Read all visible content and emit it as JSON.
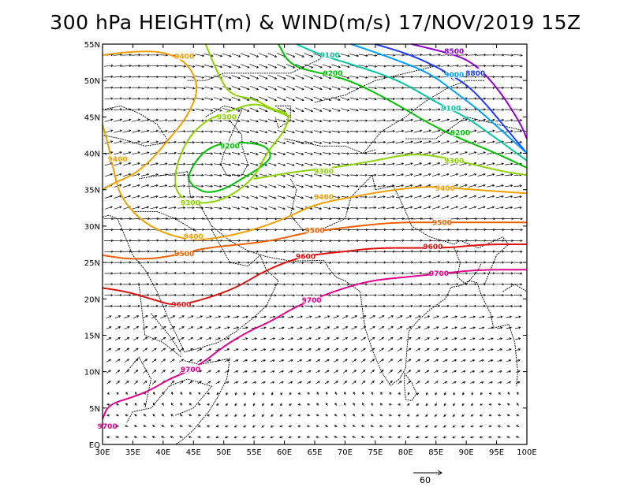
{
  "title": "300 hPa HEIGHT(m) & WIND(m/s) 17/NOV/2019 15Z",
  "map": {
    "lon_range": [
      30,
      100
    ],
    "lat_range": [
      0,
      55
    ],
    "x_ticks": [
      "30E",
      "35E",
      "40E",
      "45E",
      "50E",
      "55E",
      "60E",
      "65E",
      "70E",
      "75E",
      "80E",
      "85E",
      "90E",
      "95E",
      "100E"
    ],
    "y_ticks": [
      "EQ",
      "5N",
      "10N",
      "15N",
      "20N",
      "25N",
      "30N",
      "35N",
      "40N",
      "45N",
      "50N",
      "55N"
    ],
    "reference_vector_label": "60"
  },
  "contours": [
    {
      "label": "8500",
      "color": "#8f00d0",
      "label_lat": 54.0,
      "label_lon": 88.0,
      "path": [
        [
          81,
          55
        ],
        [
          86,
          54
        ],
        [
          90,
          53
        ],
        [
          93,
          51
        ],
        [
          96,
          48
        ],
        [
          99,
          44
        ],
        [
          100,
          42
        ]
      ]
    },
    {
      "label": "8800",
      "color": "#1e3cff",
      "label_lat": 51.5,
      "label_lon": 91.5,
      "path": [
        [
          75,
          55
        ],
        [
          81,
          53.5
        ],
        [
          86,
          51.5
        ],
        [
          90,
          49.5
        ],
        [
          93,
          47
        ],
        [
          96,
          44
        ],
        [
          100,
          40
        ]
      ]
    },
    {
      "label": "9000",
      "color": "#00a0ff",
      "label_lat": 51.5,
      "label_lon": 87.5,
      "path": [
        [
          71,
          55
        ],
        [
          78,
          53
        ],
        [
          84,
          51
        ],
        [
          88,
          48.5
        ],
        [
          92,
          46
        ],
        [
          96,
          43
        ],
        [
          100,
          40
        ]
      ]
    },
    {
      "label": "9100",
      "color": "#00c8a0",
      "label_lat": 53.5,
      "label_lon": 67.5,
      "path": [
        [
          62,
          55
        ],
        [
          66,
          53.5
        ],
        [
          72,
          52
        ],
        [
          79,
          50
        ],
        [
          85,
          47
        ],
        [
          90,
          45
        ],
        [
          95,
          42
        ],
        [
          100,
          39
        ]
      ]
    },
    {
      "label": "9200",
      "color": "#00c000",
      "label_lat": 52.5,
      "label_lon": 68.0,
      "path": [
        [
          59,
          55
        ],
        [
          61,
          52
        ],
        [
          66,
          51
        ],
        [
          71,
          50
        ],
        [
          78,
          47
        ],
        [
          84,
          44
        ],
        [
          89,
          42
        ],
        [
          95,
          40
        ],
        [
          100,
          38
        ]
      ]
    },
    {
      "label": "9200",
      "color": "#00c000",
      "label_lat": 40.5,
      "label_lon": 51.0,
      "path": [
        [
          45,
          35.5
        ],
        [
          47,
          34.5
        ],
        [
          50,
          35
        ],
        [
          53,
          36.5
        ],
        [
          56,
          38
        ],
        [
          58,
          39.5
        ],
        [
          57,
          41
        ],
        [
          54,
          41.5
        ],
        [
          50,
          41.5
        ],
        [
          47,
          40.5
        ],
        [
          45,
          38.5
        ],
        [
          44,
          36.5
        ],
        [
          45,
          35.5
        ]
      ]
    },
    {
      "label": "9300",
      "color": "#8cd200",
      "label_lat": 44.5,
      "label_lon": 50.5,
      "path": [
        [
          47,
          55
        ],
        [
          49,
          51
        ],
        [
          51,
          48
        ],
        [
          55,
          47.5
        ],
        [
          58,
          46
        ],
        [
          61,
          45.5
        ],
        [
          60,
          43
        ],
        [
          57,
          40
        ],
        [
          55,
          36.5
        ],
        [
          50,
          33.5
        ],
        [
          45,
          33
        ],
        [
          42,
          34.5
        ],
        [
          42,
          38
        ],
        [
          44,
          42
        ],
        [
          47,
          44.5
        ],
        [
          50,
          45.5
        ],
        [
          55,
          47
        ],
        [
          58,
          46
        ],
        [
          61,
          45
        ]
      ]
    },
    {
      "label": "9300",
      "color": "#8cd200",
      "label_lat": 39.0,
      "label_lon": 88.5,
      "path": [
        [
          55,
          36.5
        ],
        [
          62,
          37.5
        ],
        [
          68,
          38
        ],
        [
          75,
          39
        ],
        [
          81,
          40
        ],
        [
          86,
          39.5
        ],
        [
          91,
          38.5
        ],
        [
          96,
          37.5
        ],
        [
          100,
          37
        ]
      ]
    },
    {
      "label": "9400",
      "color": "#f0a000",
      "label_lat": 54.0,
      "label_lon": 43.5,
      "path": [
        [
          30,
          53.5
        ],
        [
          35,
          54
        ],
        [
          40,
          54
        ],
        [
          44,
          52.5
        ],
        [
          46,
          49
        ],
        [
          44,
          45
        ],
        [
          41,
          42
        ],
        [
          38,
          39
        ],
        [
          35,
          37
        ],
        [
          32,
          36
        ],
        [
          30,
          35
        ]
      ]
    },
    {
      "label": "9400",
      "color": "#f0a000",
      "label_lat": 39.5,
      "label_lon": 32.5,
      "path": [
        [
          30,
          44
        ],
        [
          31,
          41
        ],
        [
          32,
          37
        ],
        [
          33,
          34
        ],
        [
          36,
          31
        ],
        [
          40,
          29
        ],
        [
          45,
          28
        ],
        [
          50,
          28.5
        ],
        [
          55,
          29.5
        ],
        [
          60,
          31
        ],
        [
          65,
          33
        ],
        [
          71,
          34
        ],
        [
          78,
          35
        ],
        [
          84,
          35.5
        ],
        [
          91,
          35
        ],
        [
          100,
          34.5
        ]
      ]
    },
    {
      "label": "9500",
      "color": "#f06000",
      "label_lat": 30.0,
      "label_lon": 43.5,
      "path": [
        [
          30,
          26
        ],
        [
          34,
          25.5
        ],
        [
          38,
          25.5
        ],
        [
          42,
          26
        ],
        [
          47,
          27
        ],
        [
          53,
          27.5
        ],
        [
          58,
          28
        ],
        [
          63,
          29
        ],
        [
          67,
          29.5
        ],
        [
          72,
          30
        ],
        [
          78,
          30.5
        ],
        [
          84,
          30.5
        ],
        [
          90,
          30.5
        ],
        [
          95,
          30.5
        ],
        [
          100,
          30.5
        ]
      ]
    },
    {
      "label": "9600",
      "color": "#e01010",
      "label_lat": 19.5,
      "label_lon": 42.5,
      "path": [
        [
          30,
          21.5
        ],
        [
          34,
          21
        ],
        [
          38,
          20
        ],
        [
          42,
          19
        ],
        [
          47,
          20
        ],
        [
          52,
          21.5
        ],
        [
          56,
          23.5
        ],
        [
          60,
          25
        ],
        [
          64,
          26
        ],
        [
          70,
          26.5
        ],
        [
          75,
          27
        ],
        [
          82,
          27
        ],
        [
          87,
          27
        ],
        [
          93,
          27.5
        ],
        [
          100,
          27.5
        ]
      ]
    },
    {
      "label": "9700",
      "color": "#e0008c",
      "label_lat": 10.0,
      "label_lon": 44.5,
      "path": [
        [
          30,
          3.5
        ],
        [
          31,
          5.5
        ],
        [
          35,
          6.5
        ],
        [
          38,
          7.5
        ],
        [
          41,
          9
        ],
        [
          44,
          10
        ],
        [
          47,
          11.5
        ],
        [
          50,
          13.5
        ],
        [
          54,
          15.5
        ],
        [
          58,
          17
        ],
        [
          62,
          19
        ],
        [
          68,
          21
        ],
        [
          74,
          22.5
        ],
        [
          80,
          23
        ],
        [
          86,
          23.5
        ],
        [
          92,
          24
        ],
        [
          100,
          24
        ]
      ]
    }
  ],
  "contour_labels": [
    {
      "text": "8500",
      "lon": 88.0,
      "lat": 54.0,
      "color": "#8f00d0"
    },
    {
      "text": "8800",
      "lon": 91.5,
      "lat": 51.0,
      "color": "#1e3cff"
    },
    {
      "text": "9000",
      "lon": 88.0,
      "lat": 50.8,
      "color": "#00a0ff"
    },
    {
      "text": "9100",
      "lon": 67.5,
      "lat": 53.5,
      "color": "#00c8a0"
    },
    {
      "text": "9100",
      "lon": 87.5,
      "lat": 46.2,
      "color": "#00c8a0"
    },
    {
      "text": "9200",
      "lon": 68.0,
      "lat": 51.0,
      "color": "#00c000"
    },
    {
      "text": "9200",
      "lon": 51.0,
      "lat": 41.0,
      "color": "#00c000"
    },
    {
      "text": "9200",
      "lon": 89.0,
      "lat": 42.8,
      "color": "#00c000"
    },
    {
      "text": "9300",
      "lon": 50.5,
      "lat": 45.0,
      "color": "#8cd200"
    },
    {
      "text": "9300",
      "lon": 44.5,
      "lat": 33.2,
      "color": "#8cd200"
    },
    {
      "text": "9300",
      "lon": 66.5,
      "lat": 37.5,
      "color": "#8cd200"
    },
    {
      "text": "9300",
      "lon": 88.0,
      "lat": 39.0,
      "color": "#8cd200"
    },
    {
      "text": "9400",
      "lon": 43.5,
      "lat": 53.3,
      "color": "#f0a000"
    },
    {
      "text": "9400",
      "lon": 32.5,
      "lat": 39.2,
      "color": "#f0a000"
    },
    {
      "text": "9400",
      "lon": 45.0,
      "lat": 28.6,
      "color": "#f0a000"
    },
    {
      "text": "9400",
      "lon": 66.5,
      "lat": 34.0,
      "color": "#f0a000"
    },
    {
      "text": "9400",
      "lon": 86.5,
      "lat": 35.2,
      "color": "#f0a000"
    },
    {
      "text": "9500",
      "lon": 43.5,
      "lat": 26.2,
      "color": "#f06000"
    },
    {
      "text": "9500",
      "lon": 65.0,
      "lat": 29.4,
      "color": "#f06000"
    },
    {
      "text": "9500",
      "lon": 86.0,
      "lat": 30.5,
      "color": "#f06000"
    },
    {
      "text": "9600",
      "lon": 43.0,
      "lat": 19.2,
      "color": "#e01010"
    },
    {
      "text": "9600",
      "lon": 63.5,
      "lat": 25.8,
      "color": "#e01010"
    },
    {
      "text": "9600",
      "lon": 84.5,
      "lat": 27.2,
      "color": "#e01010"
    },
    {
      "text": "9700",
      "lon": 44.5,
      "lat": 10.3,
      "color": "#e0008c"
    },
    {
      "text": "9700",
      "lon": 64.5,
      "lat": 19.8,
      "color": "#e0008c"
    },
    {
      "text": "9700",
      "lon": 85.5,
      "lat": 23.5,
      "color": "#e0008c"
    },
    {
      "text": "9700",
      "lon": 30.8,
      "lat": 2.5,
      "color": "#e0008c"
    }
  ]
}
